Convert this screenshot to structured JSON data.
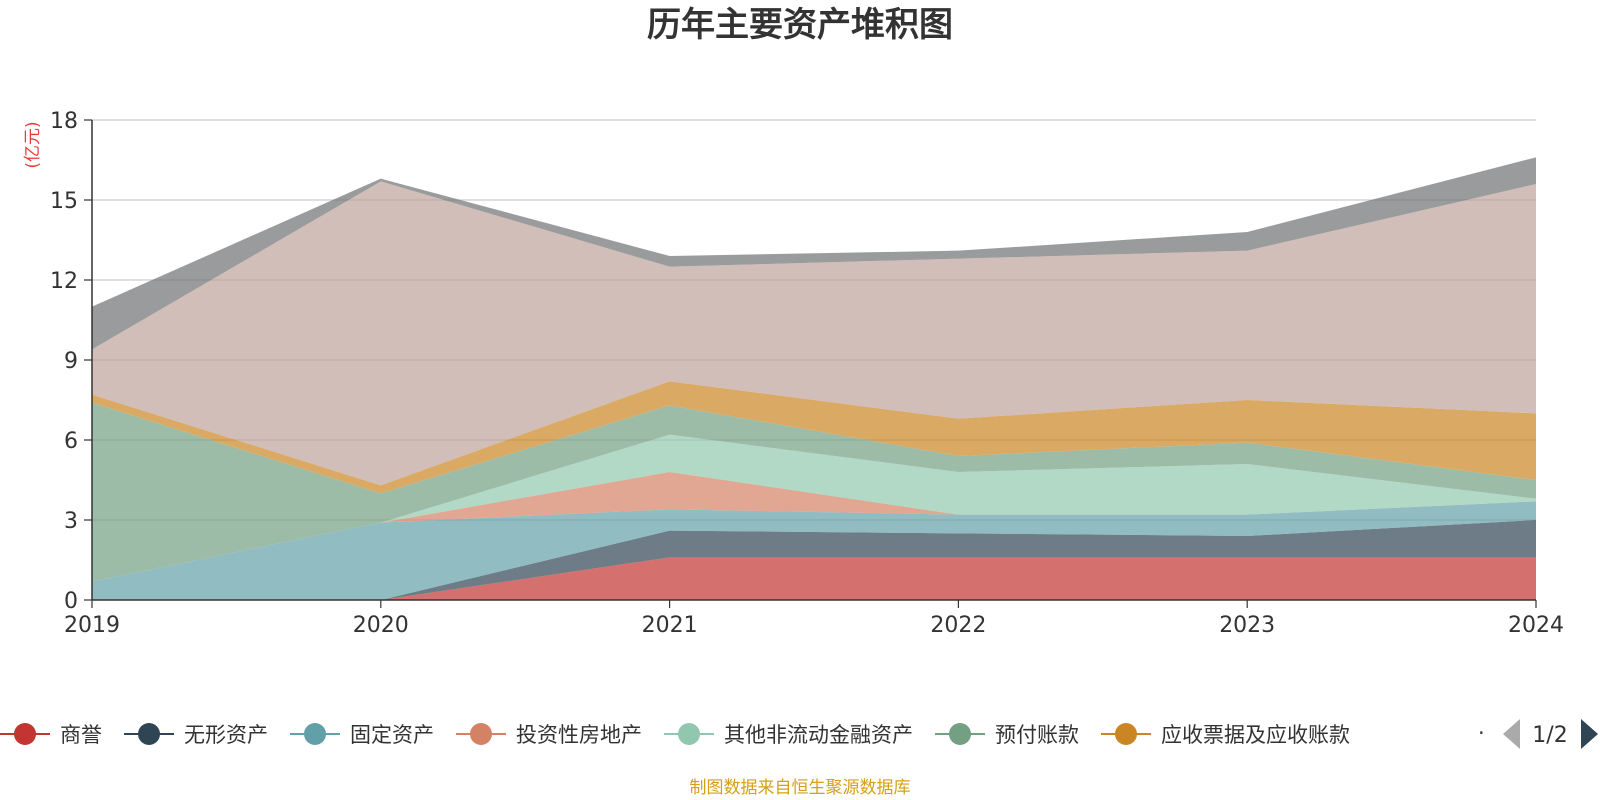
{
  "colors": {
    "goodwill": "#c23531",
    "intangible": "#2f4554",
    "fixed": "#61a0a8",
    "investment_property": "#d48265",
    "other_noncurrent_fin": "#91c7ae",
    "prepayments": "#749f83",
    "receivables": "#ca8622",
    "inventory": "#bda29a",
    "cash": "#6e7074"
  },
  "chart_data": {
    "type": "area",
    "title": "历年主要资产堆积图",
    "ylabel": "(亿元)",
    "x": [
      "2019",
      "2020",
      "2021",
      "2022",
      "2023",
      "2024"
    ],
    "ylim": [
      0,
      18
    ],
    "yticks": [
      0,
      3,
      6,
      9,
      12,
      15,
      18
    ],
    "grid": true,
    "stacked": true,
    "legend_position": "bottom",
    "series": [
      {
        "name": "商誉",
        "color_key": "goodwill",
        "values": [
          0,
          0,
          1.6,
          1.6,
          1.6,
          1.6
        ]
      },
      {
        "name": "无形资产",
        "color_key": "intangible",
        "values": [
          0,
          0,
          1.0,
          0.9,
          0.8,
          1.4
        ]
      },
      {
        "name": "固定资产",
        "color_key": "fixed",
        "values": [
          0.7,
          2.9,
          0.8,
          0.7,
          0.8,
          0.7
        ]
      },
      {
        "name": "投资性房地产",
        "color_key": "investment_property",
        "values": [
          0,
          0,
          1.4,
          0,
          0,
          0
        ]
      },
      {
        "name": "其他非流动金融资产",
        "color_key": "other_noncurrent_fin",
        "values": [
          0,
          0,
          1.4,
          1.6,
          1.9,
          0.1
        ]
      },
      {
        "name": "预付账款",
        "color_key": "prepayments",
        "values": [
          6.7,
          1.1,
          1.1,
          0.6,
          0.8,
          0.7
        ]
      },
      {
        "name": "应收票据及应收账款",
        "color_key": "receivables",
        "values": [
          0.3,
          0.3,
          0.9,
          1.4,
          1.6,
          2.5
        ]
      },
      {
        "name": "",
        "color_key": "inventory",
        "values": [
          1.7,
          11.4,
          4.3,
          6.0,
          5.6,
          8.6
        ]
      },
      {
        "name": "",
        "color_key": "cash",
        "values": [
          1.6,
          0.1,
          0.4,
          0.3,
          0.7,
          1.0
        ]
      }
    ]
  },
  "legend": {
    "items": [
      {
        "label": "商誉",
        "color_key": "goodwill"
      },
      {
        "label": "无形资产",
        "color_key": "intangible"
      },
      {
        "label": "固定资产",
        "color_key": "fixed"
      },
      {
        "label": "投资性房地产",
        "color_key": "investment_property"
      },
      {
        "label": "其他非流动金融资产",
        "color_key": "other_noncurrent_fin"
      },
      {
        "label": "预付账款",
        "color_key": "prepayments"
      },
      {
        "label": "应收票据及应收账款",
        "color_key": "receivables"
      }
    ],
    "page_indicator": "1/2"
  },
  "footer": {
    "source": "制图数据来自恒生聚源数据库"
  }
}
